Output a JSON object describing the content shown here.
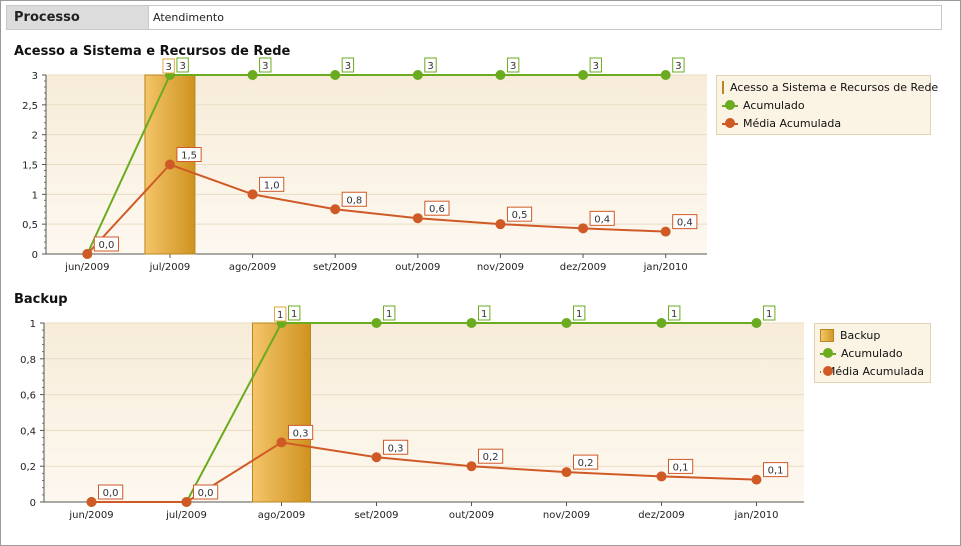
{
  "header": {
    "label": "Processo",
    "value": "Atendimento"
  },
  "colors": {
    "bar": "#e0a93c",
    "acumulado": "#6aab1f",
    "media": "#d05a26",
    "plot_bg_top": "#f7ecd9",
    "plot_bg_bottom": "#fdf8f0",
    "grid": "#e9dcc3"
  },
  "chart_data": [
    {
      "type": "bar",
      "title": "Acesso a Sistema e Recursos de Rede",
      "categories": [
        "jun/2009",
        "jul/2009",
        "ago/2009",
        "set/2009",
        "out/2009",
        "nov/2009",
        "dez/2009",
        "jan/2010"
      ],
      "ylim": [
        0,
        3
      ],
      "yticks": [
        "0",
        "0,5",
        "1",
        "1,5",
        "2",
        "2,5",
        "3"
      ],
      "grid": true,
      "legend_position": "right",
      "series": [
        {
          "name": "Acesso a Sistema e Recursos de Rede",
          "kind": "bar",
          "values": [
            0,
            3,
            0,
            0,
            0,
            0,
            0,
            0
          ],
          "labels": [
            "",
            "3",
            "",
            "",
            "",
            "",
            "",
            ""
          ]
        },
        {
          "name": "Acumulado",
          "kind": "line",
          "values": [
            0,
            3,
            3,
            3,
            3,
            3,
            3,
            3
          ],
          "labels": [
            "",
            "3",
            "3",
            "3",
            "3",
            "3",
            "3",
            "3"
          ]
        },
        {
          "name": "Média Acumulada",
          "kind": "line",
          "values": [
            0,
            1.5,
            1.0,
            0.75,
            0.6,
            0.5,
            0.43,
            0.375
          ],
          "labels": [
            "0,0",
            "1,5",
            "1,0",
            "0,8",
            "0,6",
            "0,5",
            "0,4",
            "0,4"
          ]
        }
      ]
    },
    {
      "type": "bar",
      "title": "Backup",
      "categories": [
        "jun/2009",
        "jul/2009",
        "ago/2009",
        "set/2009",
        "out/2009",
        "nov/2009",
        "dez/2009",
        "jan/2010"
      ],
      "ylim": [
        0,
        1
      ],
      "yticks": [
        "0",
        "0,2",
        "0,4",
        "0,6",
        "0,8",
        "1"
      ],
      "grid": true,
      "legend_position": "right",
      "series": [
        {
          "name": "Backup",
          "kind": "bar",
          "values": [
            0,
            0,
            1,
            0,
            0,
            0,
            0,
            0
          ],
          "labels": [
            "",
            "",
            "1",
            "",
            "",
            "",
            "",
            ""
          ]
        },
        {
          "name": "Acumulado",
          "kind": "line",
          "values": [
            0,
            0,
            1,
            1,
            1,
            1,
            1,
            1
          ],
          "labels": [
            "",
            "",
            "1",
            "1",
            "1",
            "1",
            "1",
            "1"
          ]
        },
        {
          "name": "Média Acumulada",
          "kind": "line",
          "values": [
            0,
            0,
            0.333,
            0.25,
            0.2,
            0.167,
            0.143,
            0.125
          ],
          "labels": [
            "0,0",
            "0,0",
            "0,3",
            "0,3",
            "0,2",
            "0,2",
            "0,1",
            "0,1"
          ]
        }
      ]
    }
  ]
}
